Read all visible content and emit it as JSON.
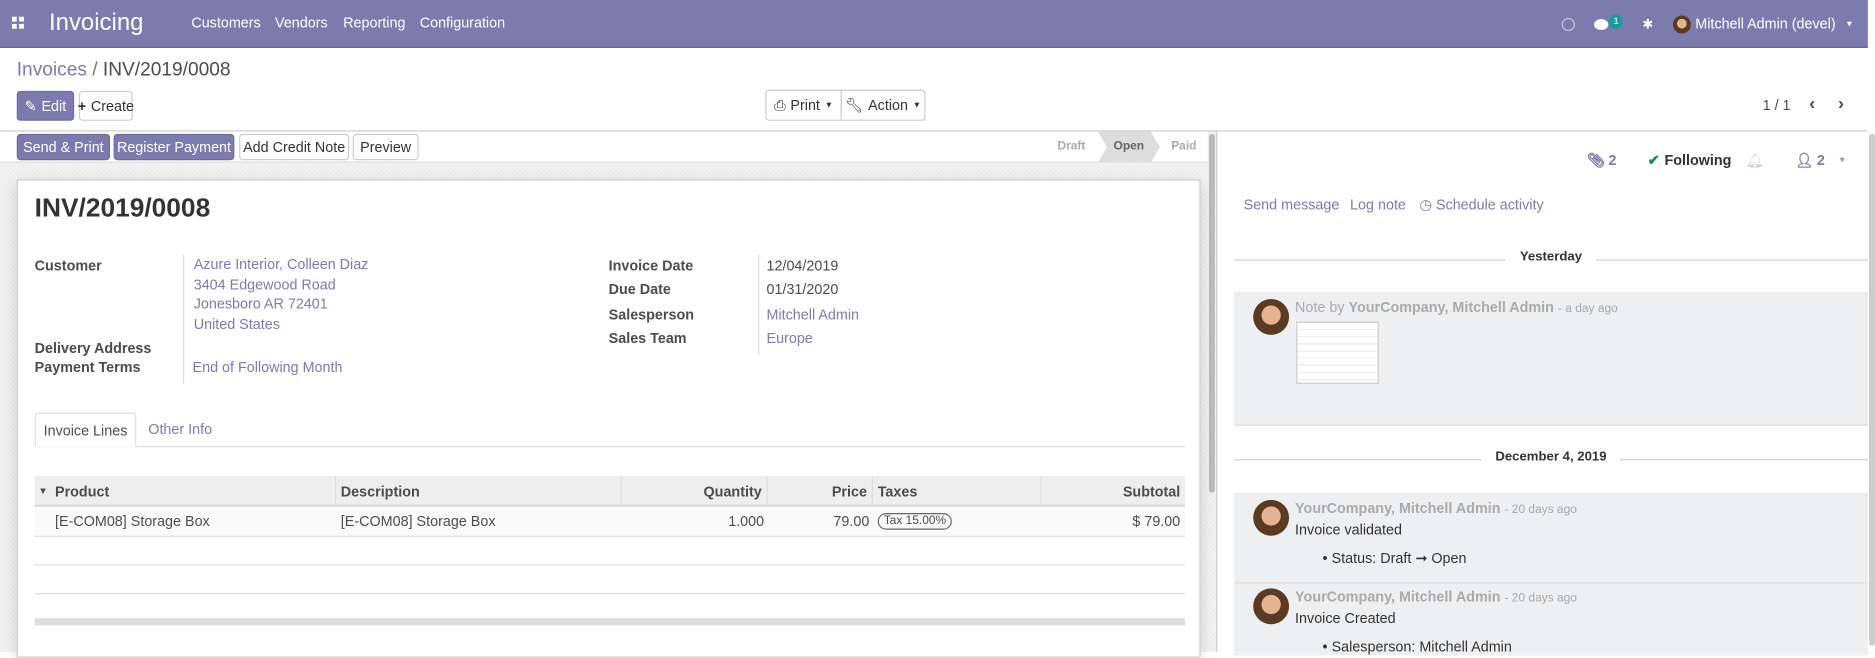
{
  "navbar": {
    "app_title": "Invoicing",
    "menus": [
      "Customers",
      "Vendors",
      "Reporting",
      "Configuration"
    ],
    "chat_badge": "1",
    "user": "Mitchell Admin (devel)",
    "brand_color": "#7C7BAD"
  },
  "control_panel": {
    "breadcrumb_parent": "Invoices",
    "breadcrumb_sep": "/",
    "breadcrumb_current": "INV/2019/0008",
    "edit": "Edit",
    "create": "Create",
    "print": "Print",
    "action": "Action",
    "pager": "1 / 1"
  },
  "statusbar": {
    "buttons": [
      "Send & Print",
      "Register Payment",
      "Add Credit Note",
      "Preview"
    ],
    "stages": [
      "Draft",
      "Open",
      "Paid"
    ],
    "active_stage": "Open"
  },
  "form": {
    "title": "INV/2019/0008",
    "customer_label": "Customer",
    "customer_lines": [
      "Azure Interior, Colleen Diaz",
      "3404 Edgewood Road",
      "Jonesboro AR 72401",
      "United States"
    ],
    "delivery_label": "Delivery Address",
    "terms_label": "Payment Terms",
    "terms_value": "End of Following Month",
    "invoice_date_label": "Invoice Date",
    "invoice_date": "12/04/2019",
    "due_date_label": "Due Date",
    "due_date": "01/31/2020",
    "salesperson_label": "Salesperson",
    "salesperson": "Mitchell Admin",
    "team_label": "Sales Team",
    "team": "Europe",
    "tabs": [
      "Invoice Lines",
      "Other Info"
    ],
    "columns": [
      "Product",
      "Description",
      "Quantity",
      "Price",
      "Taxes",
      "Subtotal"
    ],
    "lines": [
      {
        "product": "[E-COM08] Storage Box",
        "description": "[E-COM08] Storage Box",
        "quantity": "1.000",
        "price": "79.00",
        "taxes": "Tax 15.00%",
        "subtotal": "$ 79.00"
      }
    ]
  },
  "chatter": {
    "attachments": "2",
    "following": "Following",
    "followers": "2",
    "send_message": "Send message",
    "log_note": "Log note",
    "schedule_activity": "Schedule activity",
    "groups": [
      {
        "date": "Yesterday"
      },
      {
        "date": "December 4, 2019"
      }
    ],
    "messages": [
      {
        "prefix": "Note by",
        "author": "YourCompany, Mitchell Admin",
        "when": "- a day ago",
        "body": ""
      },
      {
        "prefix": "",
        "author": "YourCompany, Mitchell Admin",
        "when": "- 20 days ago",
        "body": "Invoice validated",
        "tracking": "Status: Draft ➞ Open"
      },
      {
        "prefix": "",
        "author": "YourCompany, Mitchell Admin",
        "when": "- 20 days ago",
        "body": "Invoice Created",
        "tracking": "Salesperson: Mitchell Admin"
      }
    ]
  }
}
